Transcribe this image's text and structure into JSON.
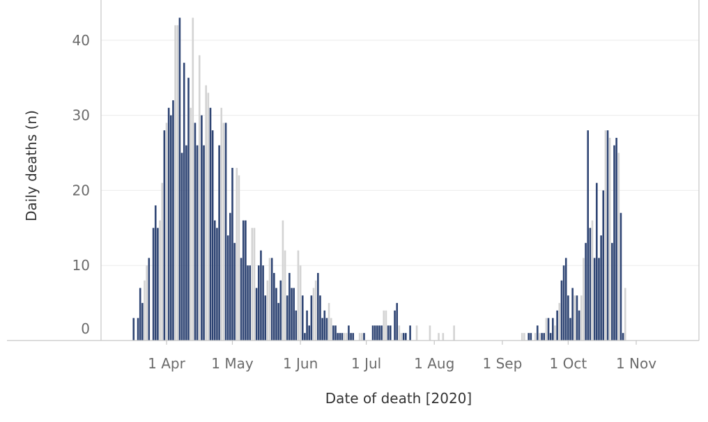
{
  "chart_data": {
    "type": "bar",
    "title": "",
    "xlabel": "Date of death [2020]",
    "ylabel": "Daily deaths (n)",
    "ylim": [
      0,
      45
    ],
    "yticks": [
      0,
      10,
      20,
      30,
      40
    ],
    "xticks": [
      {
        "date": "2020-04-01",
        "label": "1 Apr"
      },
      {
        "date": "2020-05-01",
        "label": "1 May"
      },
      {
        "date": "2020-06-01",
        "label": "1 Jun"
      },
      {
        "date": "2020-07-01",
        "label": "1 Jul"
      },
      {
        "date": "2020-08-01",
        "label": "1 Aug"
      },
      {
        "date": "2020-09-01",
        "label": "1 Sep"
      },
      {
        "date": "2020-10-01",
        "label": "1 Oct"
      },
      {
        "date": "2020-11-01",
        "label": "1 Nov"
      }
    ],
    "grid": true,
    "colors": {
      "weekday": "#2e4473",
      "weekend": "#d3d3d3",
      "grid": "#ececec",
      "axis": "#c6c6c6"
    },
    "series": [
      {
        "color": "#2e4473",
        "points": [
          {
            "x": "2020-03-17",
            "y": 3
          },
          {
            "x": "2020-03-19",
            "y": 3
          },
          {
            "x": "2020-03-20",
            "y": 7
          },
          {
            "x": "2020-03-21",
            "y": 5
          },
          {
            "x": "2020-03-24",
            "y": 11
          },
          {
            "x": "2020-03-26",
            "y": 15
          },
          {
            "x": "2020-03-27",
            "y": 18
          },
          {
            "x": "2020-03-28",
            "y": 15
          },
          {
            "x": "2020-03-31",
            "y": 28
          },
          {
            "x": "2020-04-02",
            "y": 31
          },
          {
            "x": "2020-04-03",
            "y": 30
          },
          {
            "x": "2020-04-04",
            "y": 32
          },
          {
            "x": "2020-04-07",
            "y": 43
          },
          {
            "x": "2020-04-08",
            "y": 25
          },
          {
            "x": "2020-04-09",
            "y": 37
          },
          {
            "x": "2020-04-10",
            "y": 26
          },
          {
            "x": "2020-04-11",
            "y": 35
          },
          {
            "x": "2020-04-14",
            "y": 29
          },
          {
            "x": "2020-04-15",
            "y": 26
          },
          {
            "x": "2020-04-17",
            "y": 30
          },
          {
            "x": "2020-04-18",
            "y": 26
          },
          {
            "x": "2020-04-21",
            "y": 31
          },
          {
            "x": "2020-04-22",
            "y": 28
          },
          {
            "x": "2020-04-23",
            "y": 16
          },
          {
            "x": "2020-04-24",
            "y": 15
          },
          {
            "x": "2020-04-25",
            "y": 26
          },
          {
            "x": "2020-04-28",
            "y": 29
          },
          {
            "x": "2020-04-29",
            "y": 14
          },
          {
            "x": "2020-04-30",
            "y": 17
          },
          {
            "x": "2020-05-01",
            "y": 23
          },
          {
            "x": "2020-05-02",
            "y": 13
          },
          {
            "x": "2020-05-05",
            "y": 11
          },
          {
            "x": "2020-05-06",
            "y": 16
          },
          {
            "x": "2020-05-07",
            "y": 16
          },
          {
            "x": "2020-05-08",
            "y": 10
          },
          {
            "x": "2020-05-09",
            "y": 10
          },
          {
            "x": "2020-05-12",
            "y": 7
          },
          {
            "x": "2020-05-13",
            "y": 10
          },
          {
            "x": "2020-05-14",
            "y": 12
          },
          {
            "x": "2020-05-15",
            "y": 10
          },
          {
            "x": "2020-05-16",
            "y": 6
          },
          {
            "x": "2020-05-19",
            "y": 11
          },
          {
            "x": "2020-05-20",
            "y": 9
          },
          {
            "x": "2020-05-21",
            "y": 7
          },
          {
            "x": "2020-05-22",
            "y": 5
          },
          {
            "x": "2020-05-23",
            "y": 8
          },
          {
            "x": "2020-05-26",
            "y": 6
          },
          {
            "x": "2020-05-27",
            "y": 9
          },
          {
            "x": "2020-05-28",
            "y": 7
          },
          {
            "x": "2020-05-29",
            "y": 7
          },
          {
            "x": "2020-05-30",
            "y": 4
          },
          {
            "x": "2020-06-02",
            "y": 6
          },
          {
            "x": "2020-06-03",
            "y": 1
          },
          {
            "x": "2020-06-04",
            "y": 4
          },
          {
            "x": "2020-06-05",
            "y": 2
          },
          {
            "x": "2020-06-06",
            "y": 6
          },
          {
            "x": "2020-06-09",
            "y": 9
          },
          {
            "x": "2020-06-10",
            "y": 6
          },
          {
            "x": "2020-06-11",
            "y": 3
          },
          {
            "x": "2020-06-12",
            "y": 4
          },
          {
            "x": "2020-06-13",
            "y": 3
          },
          {
            "x": "2020-06-16",
            "y": 2
          },
          {
            "x": "2020-06-17",
            "y": 2
          },
          {
            "x": "2020-06-18",
            "y": 1
          },
          {
            "x": "2020-06-19",
            "y": 1
          },
          {
            "x": "2020-06-20",
            "y": 1
          },
          {
            "x": "2020-06-23",
            "y": 2
          },
          {
            "x": "2020-06-24",
            "y": 1
          },
          {
            "x": "2020-06-25",
            "y": 1
          },
          {
            "x": "2020-06-30",
            "y": 1
          },
          {
            "x": "2020-07-04",
            "y": 2
          },
          {
            "x": "2020-07-05",
            "y": 2
          },
          {
            "x": "2020-07-06",
            "y": 2
          },
          {
            "x": "2020-07-07",
            "y": 2
          },
          {
            "x": "2020-07-08",
            "y": 2
          },
          {
            "x": "2020-07-11",
            "y": 2
          },
          {
            "x": "2020-07-12",
            "y": 2
          },
          {
            "x": "2020-07-14",
            "y": 4
          },
          {
            "x": "2020-07-15",
            "y": 5
          },
          {
            "x": "2020-07-18",
            "y": 1
          },
          {
            "x": "2020-07-19",
            "y": 1
          },
          {
            "x": "2020-07-21",
            "y": 2
          },
          {
            "x": "2020-09-13",
            "y": 1
          },
          {
            "x": "2020-09-14",
            "y": 1
          },
          {
            "x": "2020-09-17",
            "y": 2
          },
          {
            "x": "2020-09-19",
            "y": 1
          },
          {
            "x": "2020-09-20",
            "y": 1
          },
          {
            "x": "2020-09-22",
            "y": 3
          },
          {
            "x": "2020-09-23",
            "y": 1
          },
          {
            "x": "2020-09-24",
            "y": 3
          },
          {
            "x": "2020-09-26",
            "y": 4
          },
          {
            "x": "2020-09-28",
            "y": 8
          },
          {
            "x": "2020-09-29",
            "y": 10
          },
          {
            "x": "2020-09-30",
            "y": 11
          },
          {
            "x": "2020-10-01",
            "y": 6
          },
          {
            "x": "2020-10-02",
            "y": 3
          },
          {
            "x": "2020-10-03",
            "y": 7
          },
          {
            "x": "2020-10-05",
            "y": 6
          },
          {
            "x": "2020-10-06",
            "y": 4
          },
          {
            "x": "2020-10-09",
            "y": 13
          },
          {
            "x": "2020-10-10",
            "y": 28
          },
          {
            "x": "2020-10-11",
            "y": 15
          },
          {
            "x": "2020-10-13",
            "y": 11
          },
          {
            "x": "2020-10-14",
            "y": 21
          },
          {
            "x": "2020-10-15",
            "y": 11
          },
          {
            "x": "2020-10-16",
            "y": 14
          },
          {
            "x": "2020-10-17",
            "y": 20
          },
          {
            "x": "2020-10-19",
            "y": 28
          },
          {
            "x": "2020-10-21",
            "y": 13
          },
          {
            "x": "2020-10-22",
            "y": 26
          },
          {
            "x": "2020-10-23",
            "y": 27
          },
          {
            "x": "2020-10-25",
            "y": 17
          },
          {
            "x": "2020-10-26",
            "y": 1
          }
        ]
      },
      {
        "color": "#d3d3d3",
        "points": [
          {
            "x": "2020-03-22",
            "y": 8
          },
          {
            "x": "2020-03-23",
            "y": 10
          },
          {
            "x": "2020-03-29",
            "y": 16
          },
          {
            "x": "2020-03-30",
            "y": 21
          },
          {
            "x": "2020-04-01",
            "y": 29
          },
          {
            "x": "2020-04-05",
            "y": 42
          },
          {
            "x": "2020-04-06",
            "y": 42
          },
          {
            "x": "2020-04-12",
            "y": 31
          },
          {
            "x": "2020-04-13",
            "y": 43
          },
          {
            "x": "2020-04-16",
            "y": 38
          },
          {
            "x": "2020-04-19",
            "y": 34
          },
          {
            "x": "2020-04-20",
            "y": 33
          },
          {
            "x": "2020-04-26",
            "y": 31
          },
          {
            "x": "2020-04-27",
            "y": 29
          },
          {
            "x": "2020-05-03",
            "y": 23
          },
          {
            "x": "2020-05-04",
            "y": 22
          },
          {
            "x": "2020-05-10",
            "y": 15
          },
          {
            "x": "2020-05-11",
            "y": 15
          },
          {
            "x": "2020-05-17",
            "y": 8
          },
          {
            "x": "2020-05-18",
            "y": 11
          },
          {
            "x": "2020-05-24",
            "y": 16
          },
          {
            "x": "2020-05-25",
            "y": 12
          },
          {
            "x": "2020-05-31",
            "y": 12
          },
          {
            "x": "2020-06-01",
            "y": 10
          },
          {
            "x": "2020-06-07",
            "y": 7
          },
          {
            "x": "2020-06-08",
            "y": 8
          },
          {
            "x": "2020-06-14",
            "y": 5
          },
          {
            "x": "2020-06-15",
            "y": 3
          },
          {
            "x": "2020-06-21",
            "y": 1
          },
          {
            "x": "2020-06-22",
            "y": 1
          },
          {
            "x": "2020-06-28",
            "y": 1
          },
          {
            "x": "2020-06-29",
            "y": 1
          },
          {
            "x": "2020-07-09",
            "y": 4
          },
          {
            "x": "2020-07-10",
            "y": 4
          },
          {
            "x": "2020-07-16",
            "y": 2
          },
          {
            "x": "2020-07-17",
            "y": 1
          },
          {
            "x": "2020-07-24",
            "y": 2
          },
          {
            "x": "2020-07-30",
            "y": 2
          },
          {
            "x": "2020-08-03",
            "y": 1
          },
          {
            "x": "2020-08-05",
            "y": 1
          },
          {
            "x": "2020-08-10",
            "y": 2
          },
          {
            "x": "2020-09-10",
            "y": 1
          },
          {
            "x": "2020-09-11",
            "y": 1
          },
          {
            "x": "2020-09-16",
            "y": 1
          },
          {
            "x": "2020-09-18",
            "y": 1
          },
          {
            "x": "2020-09-21",
            "y": 3
          },
          {
            "x": "2020-09-25",
            "y": 2
          },
          {
            "x": "2020-09-27",
            "y": 5
          },
          {
            "x": "2020-10-04",
            "y": 6
          },
          {
            "x": "2020-10-07",
            "y": 6
          },
          {
            "x": "2020-10-08",
            "y": 11
          },
          {
            "x": "2020-10-12",
            "y": 16
          },
          {
            "x": "2020-10-18",
            "y": 28
          },
          {
            "x": "2020-10-20",
            "y": 27
          },
          {
            "x": "2020-10-24",
            "y": 25
          },
          {
            "x": "2020-10-27",
            "y": 7
          }
        ]
      }
    ]
  }
}
